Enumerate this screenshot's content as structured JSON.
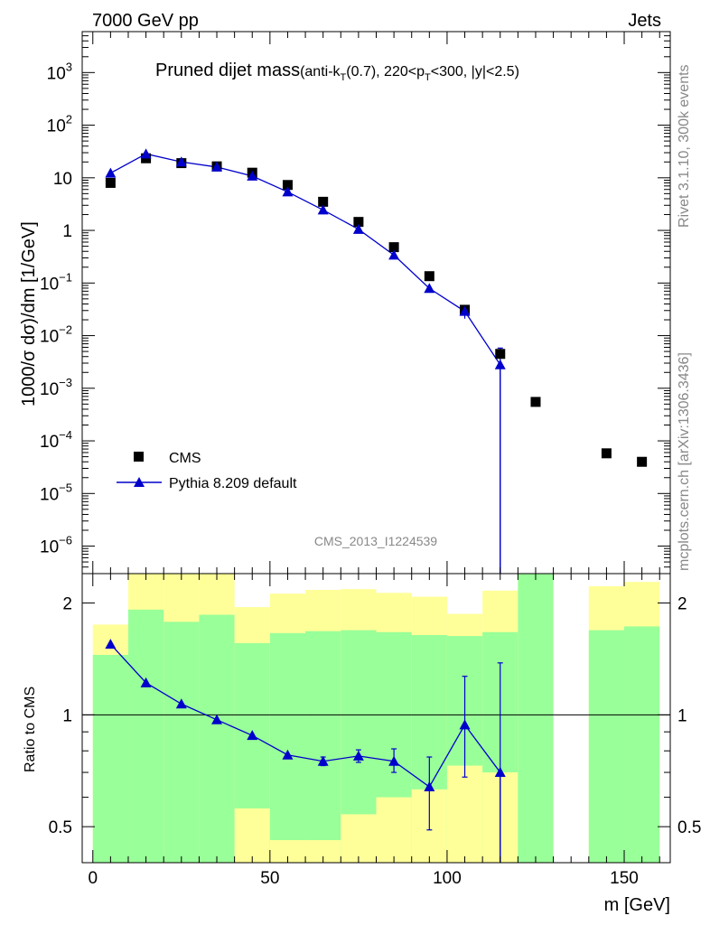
{
  "header": {
    "left": "7000 GeV pp",
    "right": "Jets"
  },
  "watermark_top": "Rivet 3.1.10,  300k events",
  "watermark_bottom": "mcplots.cern.ch [arXiv:1306.3436]",
  "analysis_id": "CMS_2013_I1224539",
  "colors": {
    "data": "#000000",
    "mc": "#0000cc",
    "band_stat": "#99ff99",
    "band_total": "#ffff99"
  },
  "chart_data": [
    {
      "type": "scatter",
      "panel": "main",
      "title": "Pruned dijet mass",
      "subtitle_parts": [
        "(anti-k",
        "T",
        "(0.7), 220<p",
        "T",
        "<300, |y|<2.5)"
      ],
      "ylabel": "1000/σ dσ)/dm [1/GeV]",
      "yscale": "log",
      "ylim": [
        3e-07,
        6000
      ],
      "xlim": [
        -3,
        163
      ],
      "yticks": [
        {
          "base": "10",
          "exp": "3",
          "v": 1000
        },
        {
          "base": "10",
          "exp": "2",
          "v": 100
        },
        {
          "base": "10",
          "exp": "",
          "v": 10
        },
        {
          "base": "1",
          "exp": "",
          "v": 1
        },
        {
          "base": "10",
          "exp": "−1",
          "v": 0.1
        },
        {
          "base": "10",
          "exp": "−2",
          "v": 0.01
        },
        {
          "base": "10",
          "exp": "−3",
          "v": 0.001
        },
        {
          "base": "10",
          "exp": "−4",
          "v": 0.0001
        },
        {
          "base": "10",
          "exp": "−5",
          "v": 1e-05
        },
        {
          "base": "10",
          "exp": "−6",
          "v": 1e-06
        }
      ],
      "legend": {
        "position": "bottom-left",
        "entries": [
          "CMS",
          "Pythia 8.209 default"
        ]
      },
      "series": [
        {
          "name": "CMS",
          "marker": "square",
          "points": [
            [
              5,
              8.0
            ],
            [
              15,
              23.5
            ],
            [
              25,
              19.0
            ],
            [
              35,
              16.5
            ],
            [
              45,
              12.5
            ],
            [
              55,
              7.3
            ],
            [
              65,
              3.5
            ],
            [
              75,
              1.45
            ],
            [
              85,
              0.48
            ],
            [
              95,
              0.135
            ],
            [
              105,
              0.031
            ],
            [
              115,
              0.0045
            ],
            [
              125,
              0.00055
            ],
            [
              145,
              5.8e-05
            ],
            [
              155,
              4e-05
            ]
          ]
        },
        {
          "name": "Pythia 8.209 default",
          "marker": "triangle",
          "points": [
            [
              5,
              12.3
            ],
            [
              15,
              28.5
            ],
            [
              25,
              20.0
            ],
            [
              35,
              16.0
            ],
            [
              45,
              10.8
            ],
            [
              55,
              5.4
            ],
            [
              65,
              2.45
            ],
            [
              75,
              1.05
            ],
            [
              85,
              0.34
            ],
            [
              95,
              0.079
            ],
            [
              105,
              0.029
            ],
            [
              115,
              0.0028
            ]
          ],
          "yerr": [
            [
              0,
              0
            ],
            [
              0,
              0
            ],
            [
              0,
              0
            ],
            [
              0,
              0
            ],
            [
              0,
              0
            ],
            [
              0,
              0
            ],
            [
              0,
              0
            ],
            [
              0,
              0
            ],
            [
              0,
              0
            ],
            [
              0,
              0
            ],
            [
              0.008,
              0.006
            ],
            [
              0.0028,
              0.003
            ]
          ]
        }
      ]
    },
    {
      "type": "scatter",
      "panel": "ratio",
      "ylabel": "Ratio to CMS",
      "xlabel": "m [GeV]",
      "yscale": "log",
      "ylim": [
        0.4,
        2.4
      ],
      "xlim": [
        -3,
        163
      ],
      "yticks": [
        0.5,
        1,
        2
      ],
      "xticks": [
        0,
        50,
        100,
        150
      ],
      "bands": [
        {
          "x0": 0,
          "x1": 10,
          "stat": [
            0.4,
            1.45
          ],
          "total": [
            1.45,
            1.75
          ]
        },
        {
          "x0": 10,
          "x1": 20,
          "stat": [
            0.4,
            1.92
          ],
          "total": [
            1.92,
            2.4
          ]
        },
        {
          "x0": 20,
          "x1": 30,
          "stat": [
            0.4,
            1.78
          ],
          "total": [
            1.78,
            2.4
          ]
        },
        {
          "x0": 30,
          "x1": 40,
          "stat": [
            0.4,
            1.86
          ],
          "total": [
            1.86,
            2.4
          ]
        },
        {
          "x0": 40,
          "x1": 50,
          "stat": [
            0.56,
            1.56
          ],
          "total": [
            1.56,
            1.95
          ]
        },
        {
          "x0": 50,
          "x1": 60,
          "stat": [
            0.46,
            1.66
          ],
          "total": [
            1.66,
            2.12
          ]
        },
        {
          "x0": 60,
          "x1": 70,
          "stat": [
            0.46,
            1.68
          ],
          "total": [
            1.68,
            2.17
          ]
        },
        {
          "x0": 70,
          "x1": 80,
          "stat": [
            0.54,
            1.69
          ],
          "total": [
            1.69,
            2.18
          ]
        },
        {
          "x0": 80,
          "x1": 90,
          "stat": [
            0.6,
            1.67
          ],
          "total": [
            1.67,
            2.13
          ]
        },
        {
          "x0": 90,
          "x1": 100,
          "stat": [
            0.63,
            1.64
          ],
          "total": [
            1.64,
            2.08
          ]
        },
        {
          "x0": 100,
          "x1": 110,
          "stat": [
            0.73,
            1.63
          ],
          "total": [
            1.63,
            1.87
          ]
        },
        {
          "x0": 110,
          "x1": 120,
          "stat": [
            0.7,
            1.67
          ],
          "total": [
            1.67,
            2.16
          ]
        },
        {
          "x0": 120,
          "x1": 130,
          "stat": [
            0.4,
            2.4
          ],
          "total": [
            2.4,
            2.4
          ]
        },
        {
          "x0": 140,
          "x1": 150,
          "stat": [
            0.4,
            1.69
          ],
          "total": [
            1.69,
            2.22
          ]
        },
        {
          "x0": 150,
          "x1": 160,
          "stat": [
            0.4,
            1.73
          ],
          "total": [
            1.73,
            2.28
          ]
        }
      ],
      "series": [
        {
          "name": "Pythia 8.209 default",
          "marker": "triangle",
          "points": [
            [
              5,
              1.55
            ],
            [
              15,
              1.22
            ],
            [
              25,
              1.07
            ],
            [
              35,
              0.97
            ],
            [
              45,
              0.88
            ],
            [
              55,
              0.78
            ],
            [
              65,
              0.75
            ],
            [
              75,
              0.775
            ],
            [
              85,
              0.75
            ],
            [
              95,
              0.64
            ],
            [
              105,
              0.94
            ],
            [
              115,
              0.7
            ]
          ],
          "yerr": [
            [
              0,
              0
            ],
            [
              0,
              0
            ],
            [
              0,
              0
            ],
            [
              0,
              0
            ],
            [
              0,
              0
            ],
            [
              0,
              0
            ],
            [
              0.02,
              0.02
            ],
            [
              0.03,
              0.03
            ],
            [
              0.05,
              0.06
            ],
            [
              0.15,
              0.13
            ],
            [
              0.26,
              0.33
            ],
            [
              0.3,
              0.68
            ]
          ]
        }
      ]
    }
  ]
}
